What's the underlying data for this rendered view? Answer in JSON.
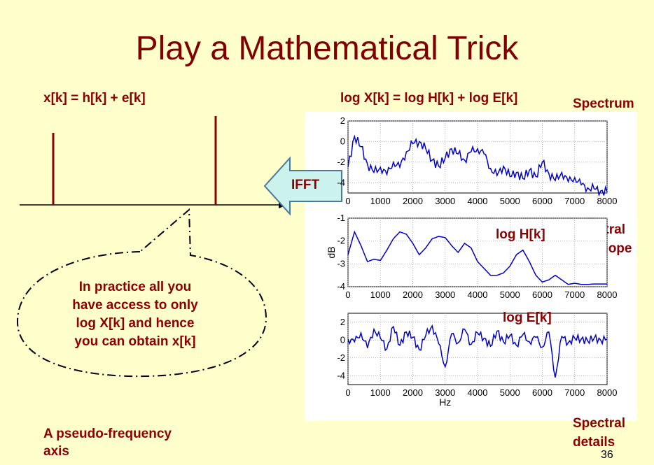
{
  "slide": {
    "title": "Play a Mathematical Trick",
    "page_number": "36"
  },
  "left": {
    "equation": "x[k] = h[k] + e[k]",
    "bubble_lines": [
      "In practice all you",
      "have access to only",
      "log X[k] and hence",
      "you can obtain x[k]"
    ],
    "axis_caption_line1": "A pseudo-frequency",
    "axis_caption_line2": "axis"
  },
  "arrow": {
    "label": "IFFT",
    "fill": "#ccf2ee"
  },
  "right": {
    "equation": "log X[k] = log H[k] + log E[k]",
    "label_spectrum": "Spectrum",
    "label_envelope_1": "Spectral",
    "label_envelope_2": "Envelope",
    "label_details_1": "Spectral",
    "label_details_2": "details",
    "inset_log_h": "log H[k]",
    "inset_log_e": "log E[k]"
  },
  "colors": {
    "title": "#800000",
    "label": "#8b0000",
    "background": "#ffffcc",
    "plot_line": "#0000cc"
  },
  "chart_data": [
    {
      "type": "line",
      "title": "",
      "xlabel": "",
      "ylabel": "",
      "xlim": [
        0,
        8000
      ],
      "ylim": [
        -5,
        2
      ],
      "xticks": [
        0,
        1000,
        2000,
        3000,
        4000,
        5000,
        6000,
        7000,
        8000
      ],
      "yticks": [
        2,
        0,
        -2,
        -4
      ],
      "grid": true,
      "x": [
        0,
        200,
        400,
        600,
        800,
        1000,
        1200,
        1400,
        1600,
        1800,
        2000,
        2200,
        2400,
        2600,
        2800,
        3000,
        3200,
        3400,
        3600,
        3800,
        4000,
        4200,
        4400,
        4600,
        4800,
        5000,
        5200,
        5400,
        5600,
        5800,
        6000,
        6200,
        6400,
        6600,
        6800,
        7000,
        7200,
        7400,
        7600,
        7800,
        8000
      ],
      "series": [
        {
          "values": [
            -2.5,
            0.5,
            -0.5,
            -2.2,
            -3.0,
            -2.5,
            -3.2,
            -2.0,
            -2.5,
            -1.0,
            -0.2,
            0.0,
            -0.7,
            -1.8,
            -2.4,
            -1.6,
            -0.7,
            -1.2,
            -1.8,
            -1.0,
            -0.7,
            -1.2,
            -2.6,
            -3.3,
            -2.4,
            -3.4,
            -3.0,
            -3.6,
            -2.8,
            -3.4,
            -2.0,
            -3.1,
            -3.8,
            -3.0,
            -3.9,
            -3.5,
            -4.2,
            -4.5,
            -4.6,
            -4.8,
            -4.9
          ]
        }
      ]
    },
    {
      "type": "line",
      "title": "",
      "xlabel": "",
      "ylabel": "dB",
      "xlim": [
        0,
        8000
      ],
      "ylim": [
        -4,
        -1
      ],
      "xticks": [
        0,
        1000,
        2000,
        3000,
        4000,
        5000,
        6000,
        7000,
        8000
      ],
      "yticks": [
        -1,
        -2,
        -3,
        -4
      ],
      "grid": true,
      "x": [
        0,
        200,
        400,
        600,
        800,
        1000,
        1200,
        1400,
        1600,
        1800,
        2000,
        2200,
        2400,
        2600,
        2800,
        3000,
        3200,
        3400,
        3600,
        3800,
        4000,
        4200,
        4400,
        4600,
        4800,
        5000,
        5200,
        5400,
        5600,
        5800,
        6000,
        6200,
        6400,
        6600,
        6800,
        7000,
        7200,
        7400,
        7600,
        7800,
        8000
      ],
      "series": [
        {
          "values": [
            -2.6,
            -1.6,
            -2.2,
            -2.9,
            -2.8,
            -2.85,
            -2.4,
            -1.9,
            -1.6,
            -1.7,
            -2.1,
            -2.6,
            -2.3,
            -1.9,
            -1.8,
            -1.85,
            -2.2,
            -2.5,
            -2.1,
            -2.3,
            -2.9,
            -3.2,
            -3.5,
            -3.5,
            -3.4,
            -3.1,
            -2.6,
            -2.4,
            -2.9,
            -3.5,
            -3.8,
            -3.7,
            -3.5,
            -3.7,
            -3.9,
            -3.85,
            -3.9,
            -3.9,
            -3.88,
            -3.88,
            -3.88
          ]
        }
      ]
    },
    {
      "type": "line",
      "title": "",
      "xlabel": "Hz",
      "ylabel": "",
      "xlim": [
        0,
        8000
      ],
      "ylim": [
        -5,
        3
      ],
      "xticks": [
        0,
        1000,
        2000,
        3000,
        4000,
        5000,
        6000,
        7000,
        8000
      ],
      "yticks": [
        2,
        0,
        -2,
        -4
      ],
      "grid": true,
      "x": [
        0,
        200,
        400,
        600,
        800,
        1000,
        1200,
        1400,
        1600,
        1800,
        2000,
        2200,
        2400,
        2600,
        2800,
        3000,
        3200,
        3400,
        3600,
        3800,
        4000,
        4200,
        4400,
        4600,
        4800,
        5000,
        5200,
        5400,
        5600,
        5800,
        6000,
        6200,
        6400,
        6600,
        6800,
        7000,
        7200,
        7400,
        7600,
        7800,
        8000
      ],
      "series": [
        {
          "values": [
            0.1,
            -0.2,
            0.8,
            -0.9,
            1.2,
            0.2,
            -1.0,
            1.5,
            -0.6,
            0.9,
            0.3,
            -1.1,
            0.5,
            1.6,
            -0.4,
            -3.0,
            0.7,
            -0.3,
            1.2,
            -0.5,
            0.8,
            0.2,
            -0.7,
            1.0,
            -0.2,
            0.5,
            -0.6,
            0.6,
            -0.2,
            0.3,
            -0.8,
            0.9,
            -4.2,
            0.4,
            -0.3,
            0.2,
            0.1,
            -0.1,
            0.2,
            0.0,
            0.1
          ]
        }
      ]
    }
  ]
}
